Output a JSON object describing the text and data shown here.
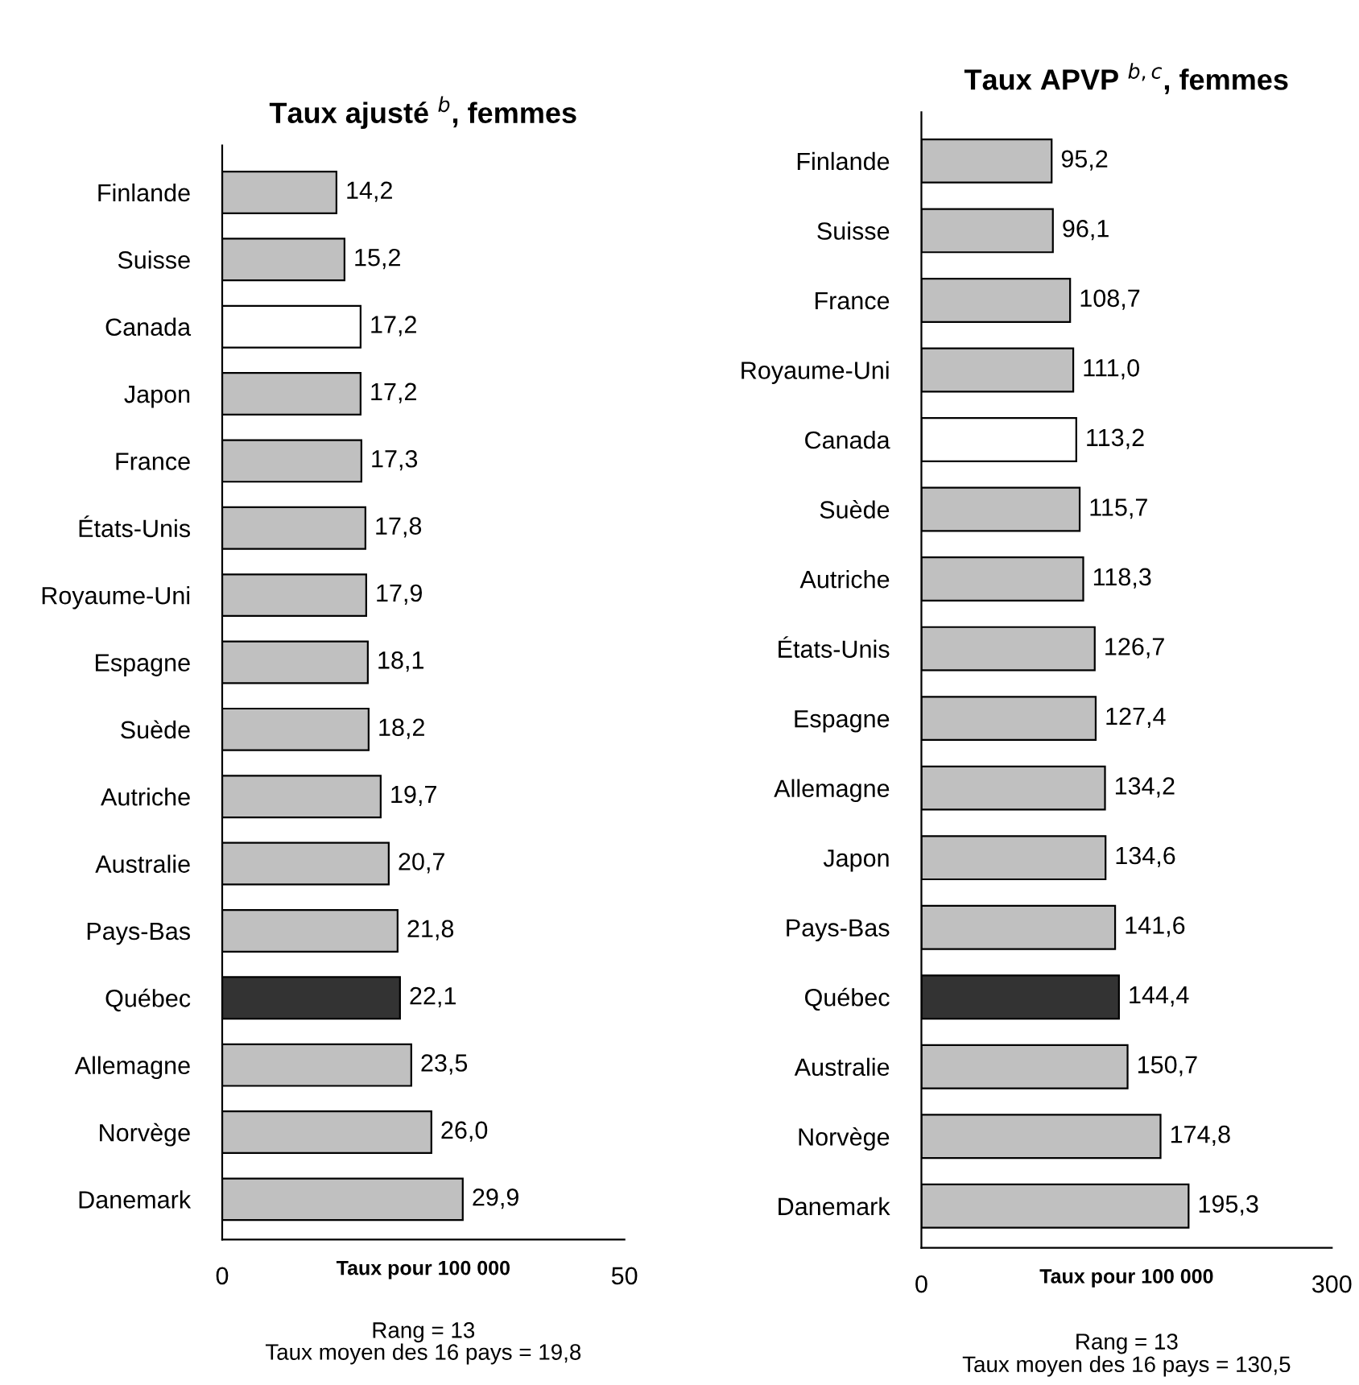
{
  "chart_data": [
    {
      "type": "bar",
      "orientation": "horizontal",
      "title": "Taux ajusté $^{b}$, femmes",
      "xlabel": "Taux pour 100 000",
      "categories": [
        "Finlande",
        "Suisse",
        "Canada",
        "Japon",
        "France",
        "États-Unis",
        "Royaume-Uni",
        "Espagne",
        "Suède",
        "Autriche",
        "Australie",
        "Pays-Bas",
        "Québec",
        "Allemagne",
        "Norvège",
        "Danemark"
      ],
      "values": [
        14.2,
        15.2,
        17.2,
        17.2,
        17.3,
        17.8,
        17.9,
        18.1,
        18.2,
        19.7,
        20.7,
        21.8,
        22.1,
        23.5,
        26.0,
        29.9
      ],
      "value_labels": [
        "14,2",
        "15,2",
        "17,2",
        "17,2",
        "17,3",
        "17,8",
        "17,9",
        "18,1",
        "18,2",
        "19,7",
        "20,7",
        "21,8",
        "22,1",
        "23,5",
        "26,0",
        "29,9"
      ],
      "colors": [
        "#c0c0c0",
        "#c0c0c0",
        "#ffffff",
        "#c0c0c0",
        "#c0c0c0",
        "#c0c0c0",
        "#c0c0c0",
        "#c0c0c0",
        "#c0c0c0",
        "#c0c0c0",
        "#c0c0c0",
        "#c0c0c0",
        "#333333",
        "#c0c0c0",
        "#c0c0c0",
        "#c0c0c0"
      ],
      "xlim": [
        0,
        50
      ],
      "xticks": [
        0,
        50
      ],
      "grid": false,
      "legend": false,
      "annotations": [
        "Rang = 13",
        "Taux moyen des 16 pays = 19,8"
      ]
    },
    {
      "type": "bar",
      "orientation": "horizontal",
      "title": "Taux APVP $^{b,c}$, femmes",
      "xlabel": "Taux pour 100 000",
      "categories": [
        "Finlande",
        "Suisse",
        "France",
        "Royaume-Uni",
        "Canada",
        "Suède",
        "Autriche",
        "États-Unis",
        "Espagne",
        "Allemagne",
        "Japon",
        "Pays-Bas",
        "Québec",
        "Australie",
        "Norvège",
        "Danemark"
      ],
      "values": [
        95.2,
        96.1,
        108.7,
        111.0,
        113.2,
        115.7,
        118.3,
        126.7,
        127.4,
        134.2,
        134.6,
        141.6,
        144.4,
        150.7,
        174.8,
        195.3
      ],
      "value_labels": [
        "95,2",
        "96,1",
        "108,7",
        "111,0",
        "113,2",
        "115,7",
        "118,3",
        "126,7",
        "127,4",
        "134,2",
        "134,6",
        "141,6",
        "144,4",
        "150,7",
        "174,8",
        "195,3"
      ],
      "colors": [
        "#c0c0c0",
        "#c0c0c0",
        "#c0c0c0",
        "#c0c0c0",
        "#ffffff",
        "#c0c0c0",
        "#c0c0c0",
        "#c0c0c0",
        "#c0c0c0",
        "#c0c0c0",
        "#c0c0c0",
        "#c0c0c0",
        "#333333",
        "#c0c0c0",
        "#c0c0c0",
        "#c0c0c0"
      ],
      "xlim": [
        0,
        300
      ],
      "xticks": [
        0,
        300
      ],
      "grid": false,
      "legend": false,
      "annotations": [
        "Rang = 13",
        "Taux moyen des 16 pays = 130,5"
      ]
    }
  ]
}
